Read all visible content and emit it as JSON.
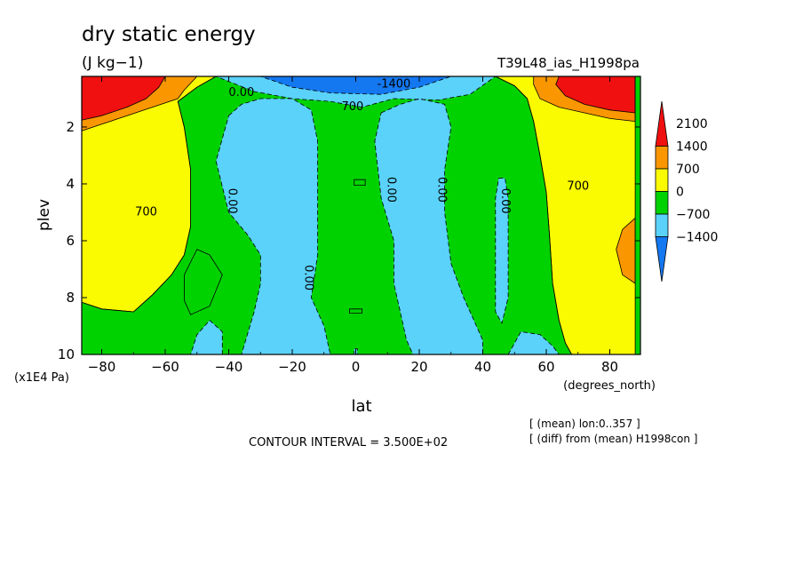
{
  "chart_data": {
    "type": "heatmap",
    "title": "dry static energy",
    "units": "(J kg−1)",
    "run_label": "T39L48_ias_H1998pa",
    "xlabel": "lat",
    "xunits": "(degrees_north)",
    "ylabel": "plev",
    "yunits": "(x1E4 Pa)",
    "xlim": [
      -88,
      88
    ],
    "ylim": [
      0.2,
      10
    ],
    "y_inverted": true,
    "x_ticks": [
      -80,
      -60,
      -40,
      -20,
      0,
      20,
      40,
      60,
      80
    ],
    "x_tick_labels": [
      "−80",
      "−60",
      "−40",
      "−20",
      "0",
      "20",
      "40",
      "60",
      "80"
    ],
    "y_ticks": [
      2,
      4,
      6,
      8,
      10
    ],
    "y_tick_labels": [
      "2",
      "4",
      "6",
      "8",
      "10"
    ],
    "contour_interval_text": "CONTOUR INTERVAL = 3.500E+02",
    "notes": [
      "[ (mean) lon:0..357 ]",
      "[ (diff) from (mean) H1998con ]"
    ],
    "colorbar": {
      "levels": [
        -1400,
        -700,
        0,
        700,
        1400,
        2100
      ],
      "level_labels": [
        "−1400",
        "−700",
        "0",
        "700",
        "1400",
        "2100"
      ],
      "colors": [
        "#1478f0",
        "#5ad2fa",
        "#00d200",
        "#fafa00",
        "#fa9600",
        "#f01010"
      ],
      "extend": "both"
    },
    "contour_labels": [
      {
        "text": "-1400",
        "x": 12,
        "y": 0.5
      },
      {
        "text": "0.00",
        "x": -36,
        "y": 0.8
      },
      {
        "text": "700",
        "x": -1,
        "y": 1.3
      },
      {
        "text": "0.00",
        "x": -39,
        "y": 4.6
      },
      {
        "text": "700",
        "x": -66,
        "y": 5.0
      },
      {
        "text": "0.00",
        "x": -15,
        "y": 7.3
      },
      {
        "text": "0.00",
        "x": 11,
        "y": 4.2
      },
      {
        "text": "0.00",
        "x": 27,
        "y": 4.2
      },
      {
        "text": "0.00",
        "x": 47,
        "y": 4.6
      },
      {
        "text": "700",
        "x": 70,
        "y": 4.1
      }
    ],
    "regions": [
      {
        "level": 0,
        "points": [
          [
            -88,
            10
          ],
          [
            -88,
            8.1
          ],
          [
            -80,
            8.4
          ],
          [
            -70,
            8.5
          ],
          [
            -64,
            7.9
          ],
          [
            -58,
            7.2
          ],
          [
            -54,
            6.5
          ],
          [
            -52,
            5.5
          ],
          [
            -52,
            3.5
          ],
          [
            -54,
            2.0
          ],
          [
            -56,
            1.1
          ],
          [
            -50,
            0.6
          ],
          [
            -44,
            0.22
          ],
          [
            44,
            0.22
          ],
          [
            50,
            0.55
          ],
          [
            54,
            1.0
          ],
          [
            56,
            1.8
          ],
          [
            58,
            3.0
          ],
          [
            60,
            4.3
          ],
          [
            61,
            5.8
          ],
          [
            62,
            7.5
          ],
          [
            64,
            8.8
          ],
          [
            66,
            9.6
          ],
          [
            68,
            10
          ]
        ]
      },
      {
        "level": -1,
        "points": [
          [
            -44,
            0.22
          ],
          [
            44,
            0.22
          ],
          [
            36,
            0.85
          ],
          [
            26,
            1.05
          ],
          [
            12,
            1.0
          ],
          [
            2,
            1.3
          ],
          [
            -8,
            1.1
          ],
          [
            -20,
            1.0
          ],
          [
            -32,
            0.75
          ]
        ]
      },
      {
        "level": -2,
        "points": [
          [
            -30,
            0.22
          ],
          [
            30,
            0.22
          ],
          [
            20,
            0.6
          ],
          [
            8,
            0.85
          ],
          [
            -8,
            0.8
          ],
          [
            -20,
            0.6
          ]
        ]
      },
      {
        "level": -1,
        "points": [
          [
            -42,
            10
          ],
          [
            -42,
            9.2
          ],
          [
            -46,
            8.8
          ],
          [
            -50,
            9.3
          ],
          [
            -52,
            10
          ]
        ]
      },
      {
        "level": -1,
        "points": [
          [
            -40,
            1.6
          ],
          [
            -36,
            1.2
          ],
          [
            -30,
            1.0
          ],
          [
            -20,
            1.0
          ],
          [
            -14,
            1.4
          ],
          [
            -12,
            2.5
          ],
          [
            -12,
            4.5
          ],
          [
            -12,
            6.5
          ],
          [
            -14,
            8.0
          ],
          [
            -10,
            9.0
          ],
          [
            -8,
            10
          ],
          [
            -36,
            10
          ],
          [
            -32,
            8.5
          ],
          [
            -30,
            7.5
          ],
          [
            -30,
            6.5
          ],
          [
            -34,
            5.8
          ],
          [
            -40,
            5.0
          ],
          [
            -44,
            3.2
          ]
        ]
      },
      {
        "level": 0,
        "points": [
          [
            -54,
            7.2
          ],
          [
            -50,
            6.3
          ],
          [
            -46,
            6.5
          ],
          [
            -42,
            7.2
          ],
          [
            -46,
            8.3
          ],
          [
            -52,
            8.6
          ],
          [
            -54,
            8.1
          ]
        ]
      },
      {
        "level": 0,
        "points": [
          [
            -0.5,
            3.85
          ],
          [
            3,
            3.85
          ],
          [
            3,
            4.05
          ],
          [
            -0.5,
            4.05
          ]
        ]
      },
      {
        "level": 0,
        "points": [
          [
            -2,
            8.4
          ],
          [
            2,
            8.4
          ],
          [
            2,
            8.55
          ],
          [
            -2,
            8.55
          ]
        ]
      },
      {
        "level": -1,
        "points": [
          [
            8,
            1.5
          ],
          [
            14,
            1.2
          ],
          [
            20,
            1.0
          ],
          [
            28,
            1.2
          ],
          [
            30,
            2.0
          ],
          [
            28,
            3.5
          ],
          [
            28,
            5.0
          ],
          [
            30,
            6.8
          ],
          [
            34,
            8.0
          ],
          [
            38,
            9.0
          ],
          [
            40,
            9.5
          ],
          [
            40,
            10
          ],
          [
            18,
            10
          ],
          [
            16,
            9.5
          ],
          [
            14,
            8.5
          ],
          [
            12,
            7.5
          ],
          [
            12,
            6.0
          ],
          [
            8,
            4.5
          ],
          [
            6,
            2.5
          ]
        ]
      },
      {
        "level": -1,
        "points": [
          [
            45,
            3.8
          ],
          [
            47,
            3.8
          ],
          [
            48,
            4.5
          ],
          [
            48,
            6.0
          ],
          [
            48,
            8.0
          ],
          [
            46,
            8.9
          ],
          [
            44,
            8.5
          ],
          [
            44,
            6.0
          ],
          [
            44,
            4.5
          ]
        ]
      },
      {
        "level": -1,
        "points": [
          [
            48,
            10
          ],
          [
            52,
            9.2
          ],
          [
            58,
            9.3
          ],
          [
            62,
            9.7
          ],
          [
            64,
            10
          ]
        ]
      },
      {
        "level": -1,
        "points": [
          [
            -0.5,
            10
          ],
          [
            0.5,
            10
          ],
          [
            0.5,
            9.8
          ],
          [
            -0.5,
            9.8
          ]
        ]
      },
      {
        "level": 1,
        "points": [
          [
            -88,
            8.1
          ],
          [
            -80,
            8.4
          ],
          [
            -70,
            8.5
          ],
          [
            -64,
            7.9
          ],
          [
            -58,
            7.2
          ],
          [
            -54,
            6.5
          ],
          [
            -52,
            5.5
          ],
          [
            -52,
            3.5
          ],
          [
            -54,
            2.0
          ],
          [
            -56,
            1.1
          ],
          [
            -50,
            0.6
          ],
          [
            -44,
            0.22
          ],
          [
            -88,
            0.22
          ]
        ]
      },
      {
        "level": 2,
        "points": [
          [
            -88,
            2.2
          ],
          [
            -80,
            1.9
          ],
          [
            -72,
            1.6
          ],
          [
            -64,
            1.3
          ],
          [
            -56,
            1.0
          ],
          [
            -54,
            0.7
          ],
          [
            -50,
            0.22
          ],
          [
            -88,
            0.22
          ]
        ]
      },
      {
        "level": 3,
        "points": [
          [
            -88,
            1.8
          ],
          [
            -80,
            1.6
          ],
          [
            -72,
            1.3
          ],
          [
            -66,
            1.0
          ],
          [
            -62,
            0.6
          ],
          [
            -60,
            0.22
          ],
          [
            -88,
            0.22
          ]
        ]
      },
      {
        "level": 1,
        "points": [
          [
            88,
            10
          ],
          [
            68,
            10
          ],
          [
            66,
            9.6
          ],
          [
            64,
            8.8
          ],
          [
            62,
            7.5
          ],
          [
            61,
            5.8
          ],
          [
            60,
            4.3
          ],
          [
            58,
            3.0
          ],
          [
            56,
            1.8
          ],
          [
            54,
            1.0
          ],
          [
            50,
            0.55
          ],
          [
            44,
            0.22
          ],
          [
            88,
            0.22
          ]
        ]
      },
      {
        "level": 2,
        "points": [
          [
            88,
            1.8
          ],
          [
            80,
            1.7
          ],
          [
            72,
            1.5
          ],
          [
            64,
            1.3
          ],
          [
            58,
            1.0
          ],
          [
            56,
            0.5
          ],
          [
            56,
            0.22
          ],
          [
            88,
            0.22
          ]
        ]
      },
      {
        "level": 3,
        "points": [
          [
            88,
            1.5
          ],
          [
            80,
            1.4
          ],
          [
            72,
            1.2
          ],
          [
            66,
            0.9
          ],
          [
            63,
            0.5
          ],
          [
            64,
            0.22
          ],
          [
            88,
            0.22
          ]
        ]
      },
      {
        "level": 2,
        "points": [
          [
            88,
            5.2
          ],
          [
            84,
            5.6
          ],
          [
            82,
            6.3
          ],
          [
            84,
            7.2
          ],
          [
            88,
            7.5
          ]
        ]
      }
    ]
  }
}
